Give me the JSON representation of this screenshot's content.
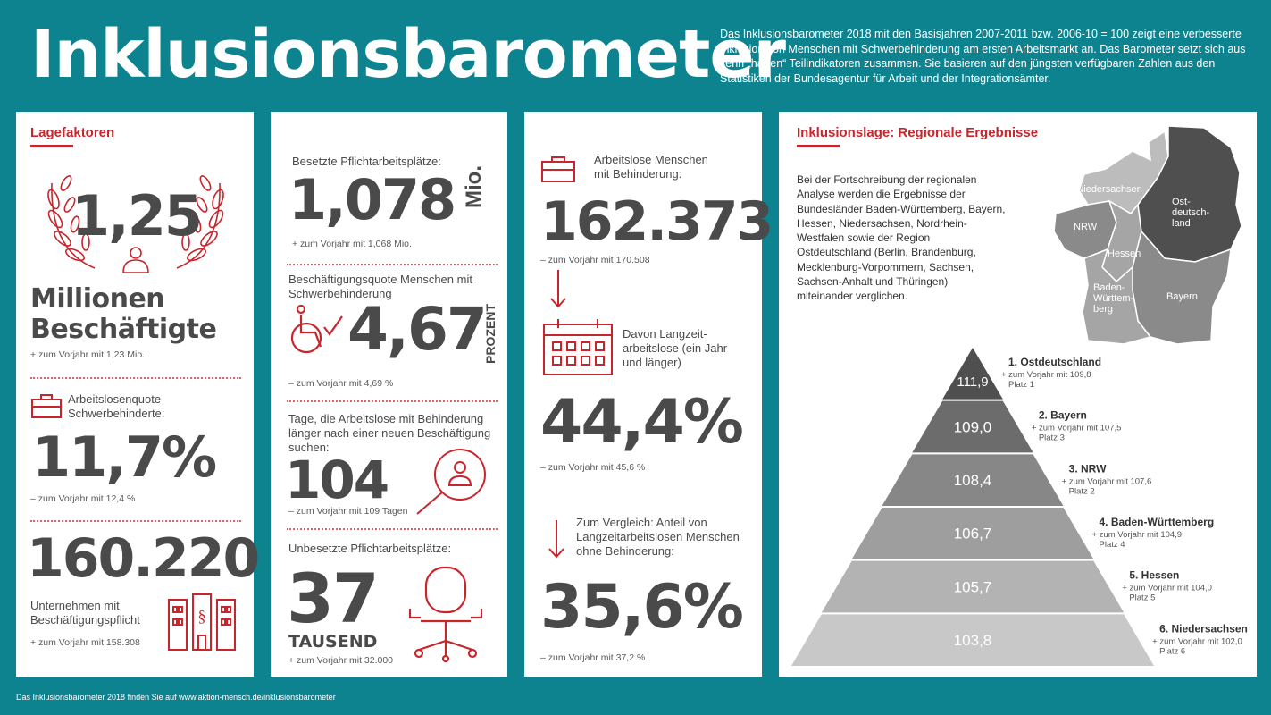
{
  "header": {
    "title": "Inklusionsbarometer",
    "intro": "Das Inklusionsbarometer 2018 mit den Basisjahren 2007-2011 bzw. 2006-10 = 100 zeigt eine verbesserte Inklusion von Menschen mit Schwerbehinderung am ersten Arbeitsmarkt an. Das Barometer setzt sich aus zehn „harten“ Teilindikatoren zusammen. Sie basieren auf den jüngsten verfügbaren Zahlen aus den Statistiken der Bundesagentur für Arbeit und der Integrationsämter."
  },
  "panel1": {
    "title": "Lagefaktoren",
    "employed_value": "1,25",
    "employed_line1": "Millionen",
    "employed_line2": "Beschäftigte",
    "employed_prev": "+ zum Vorjahr mit 1,23 Mio.",
    "rate_label": "Arbeitslosenquote Schwerbehinderte:",
    "rate_value": "11,7%",
    "rate_prev": "– zum Vorjahr mit 12,4 %",
    "companies_value": "160.220",
    "companies_label": "Unternehmen mit Beschäftigungspflicht",
    "companies_prev": "+ zum Vorjahr mit 158.308"
  },
  "panel2": {
    "occupied_label": "Besetzte Pflichtarbeitsplätze:",
    "occupied_value": "1,078",
    "occupied_unit": "Mio.",
    "occupied_prev": "+ zum Vorjahr mit 1,068 Mio.",
    "quota_label": "Beschäftigungsquote Menschen mit Schwerbehinderung",
    "quota_value": "4,67",
    "quota_unit": "PROZENT",
    "quota_prev": "– zum Vorjahr mit 4,69 %",
    "days_label": "Tage, die Arbeitslose mit Behinderung länger nach einer neuen Beschäftigung suchen:",
    "days_value": "104",
    "days_prev": "– zum Vorjahr mit 109 Tagen",
    "vacant_label": "Unbesetzte Pflichtarbeitsplätze:",
    "vacant_value": "37",
    "vacant_unit": "TAUSEND",
    "vacant_prev": "+ zum Vorjahr mit 32.000"
  },
  "panel3": {
    "unemployed_label": "Arbeitslose Menschen mit Behinderung:",
    "unemployed_value": "162.373",
    "unemployed_prev": "– zum Vorjahr mit 170.508",
    "longterm_label": "Davon Langzeit-arbeitslose (ein Jahr und länger)",
    "longterm_value": "44,4%",
    "longterm_prev": "– zum Vorjahr mit 45,6 %",
    "compare_label": "Zum Vergleich: Anteil von Langzeitarbeitslosen Menschen ohne Behinderung:",
    "compare_value": "35,6%",
    "compare_prev": "– zum Vorjahr mit 37,2 %"
  },
  "panel4": {
    "title": "Inklusionslage: Regionale Ergebnisse",
    "text": "Bei der Fortschreibung der regionalen Analyse werden die Ergebnisse der Bundesländer Baden-Württemberg, Bayern, Hessen, Niedersachsen, Nordrhein-Westfalen sowie der Region Ostdeutschland (Berlin, Brandenburg, Mecklenburg-Vorpommern, Sachsen, Sachsen-Anhalt und Thüringen) miteinander verglichen.",
    "map_labels": {
      "niedersachsen": "Niedersachsen",
      "nrw": "NRW",
      "hessen": "Hessen",
      "ost": "Ost-\ndeutsch-\nland",
      "bayern": "Bayern",
      "bw": "Baden-\nWürttem-\nberg"
    },
    "ranking": [
      {
        "value": "111,9",
        "name": "1. Ostdeutschland",
        "prev": "+ zum Vorjahr mit 109,8",
        "place": "Platz 1",
        "color": "#4f4f4f"
      },
      {
        "value": "109,0",
        "name": "2. Bayern",
        "prev": "+ zum Vorjahr mit 107,5",
        "place": "Platz 3",
        "color": "#6c6c6c"
      },
      {
        "value": "108,4",
        "name": "3. NRW",
        "prev": "+ zum Vorjahr mit 107,6",
        "place": "Platz 2",
        "color": "#878787"
      },
      {
        "value": "106,7",
        "name": "4. Baden-Württemberg",
        "prev": "+ zum Vorjahr mit 104,9",
        "place": "Platz 4",
        "color": "#9e9e9e"
      },
      {
        "value": "105,7",
        "name": "5. Hessen",
        "prev": "+ zum Vorjahr mit 104,0",
        "place": "Platz 5",
        "color": "#b3b3b3"
      },
      {
        "value": "103,8",
        "name": "6. Niedersachsen",
        "prev": "+ zum Vorjahr mit 102,0",
        "place": "Platz 6",
        "color": "#c8c8c8"
      }
    ]
  },
  "footer": "Das Inklusionsbarometer 2018 finden Sie auf www.aktion-mensch.de/inklusionsbarometer"
}
